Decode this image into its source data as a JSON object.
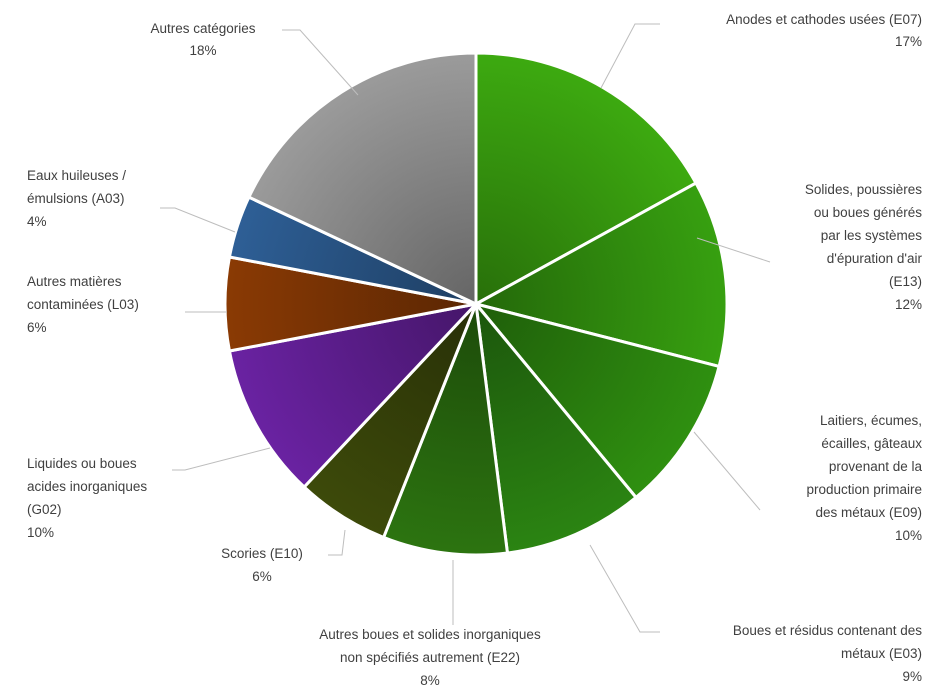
{
  "chart_data": {
    "type": "pie",
    "title": "",
    "start_angle_deg": 0,
    "direction": "clockwise",
    "slices": [
      {
        "label_lines": [
          "Anodes et cathodes usées  (E07)"
        ],
        "percent_label": "17%",
        "value": 17,
        "color": "#3daa10"
      },
      {
        "label_lines": [
          "Solides, poussières",
          "ou boues générés",
          "par les systèmes",
          "d'épuration d'air",
          "(E13)"
        ],
        "percent_label": "12%",
        "value": 12,
        "color": "#37a010"
      },
      {
        "label_lines": [
          "Laitiers, écumes,",
          "écailles, gâteaux",
          "provenant de la",
          "production primaire",
          "des métaux (E09)"
        ],
        "percent_label": "10%",
        "value": 10,
        "color": "#2f9010"
      },
      {
        "label_lines": [
          "Boues et résidus contenant des",
          "métaux  (E03)"
        ],
        "percent_label": "9%",
        "value": 9,
        "color": "#2b8412"
      },
      {
        "label_lines": [
          "Autres boues et solides inorganiques",
          "non spécifiés autrement  (E22)"
        ],
        "percent_label": "8%",
        "value": 8,
        "color": "#2c7410"
      },
      {
        "label_lines": [
          "Scories (E10)"
        ],
        "percent_label": "6%",
        "value": 6,
        "color": "#3d4a0a"
      },
      {
        "label_lines": [
          "Liquides ou boues",
          "acides inorganiques",
          "(G02)"
        ],
        "percent_label": "10%",
        "value": 10,
        "color": "#6a22a2"
      },
      {
        "label_lines": [
          "Autres matières",
          "contaminées  (L03)"
        ],
        "percent_label": "6%",
        "value": 6,
        "color": "#8a3a04"
      },
      {
        "label_lines": [
          "Eaux huileuses /",
          "émulsions (A03)"
        ],
        "percent_label": "4%",
        "value": 4,
        "color": "#2e5f96"
      },
      {
        "label_lines": [
          "Autres catégories"
        ],
        "percent_label": "18%",
        "value": 18,
        "color": "#9b9b9b"
      }
    ]
  }
}
